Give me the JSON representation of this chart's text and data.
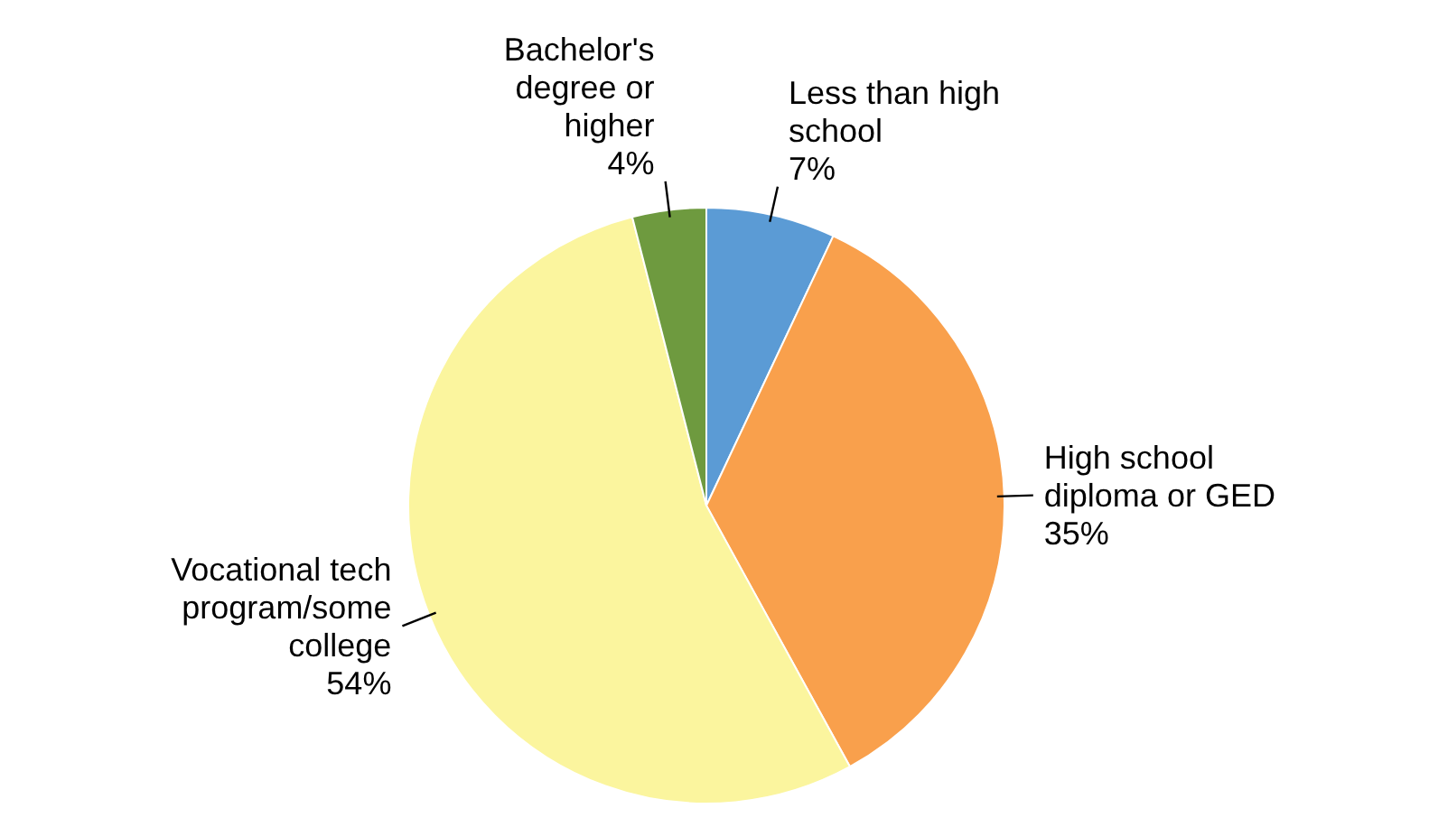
{
  "chart_data": {
    "type": "pie",
    "categories": [
      "Less than high school",
      "High school diploma or GED",
      "Vocational tech program/some college",
      "Bachelor's degree or higher"
    ],
    "values": [
      7,
      35,
      54,
      4
    ],
    "colors": [
      "#5b9bd5",
      "#f9a04c",
      "#fbf59e",
      "#6e9a3f"
    ],
    "value_labels": [
      "7%",
      "35%",
      "54%",
      "4%"
    ]
  }
}
